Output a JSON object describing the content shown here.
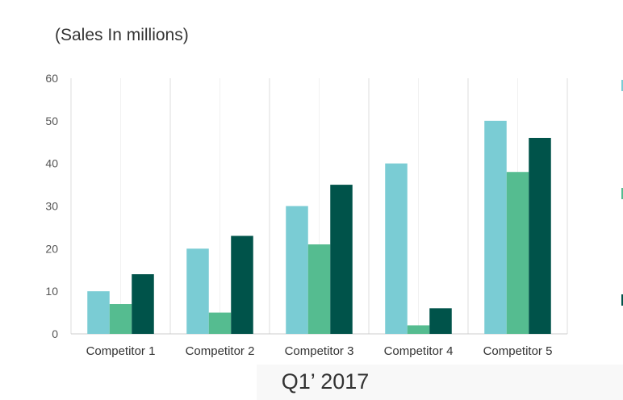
{
  "chart_data": {
    "type": "bar",
    "title": "(Sales In millions)",
    "subtitle": "Q1’ 2017",
    "xlabel": "",
    "ylabel": "",
    "ylim": [
      0,
      60
    ],
    "yticks": [
      0,
      10,
      20,
      30,
      40,
      50,
      60
    ],
    "grid": true,
    "legend": "right, clipped (only color markers visible)",
    "categories": [
      "Competitor 1",
      "Competitor 2",
      "Competitor 3",
      "Competitor 4",
      "Competitor 5"
    ],
    "series": [
      {
        "color": "#7accd4",
        "values": [
          10,
          20,
          30,
          40,
          50
        ]
      },
      {
        "color": "#55bc90",
        "values": [
          7,
          5,
          21,
          2,
          38
        ]
      },
      {
        "color": "#00534a",
        "values": [
          14,
          23,
          35,
          6,
          46
        ]
      }
    ]
  }
}
